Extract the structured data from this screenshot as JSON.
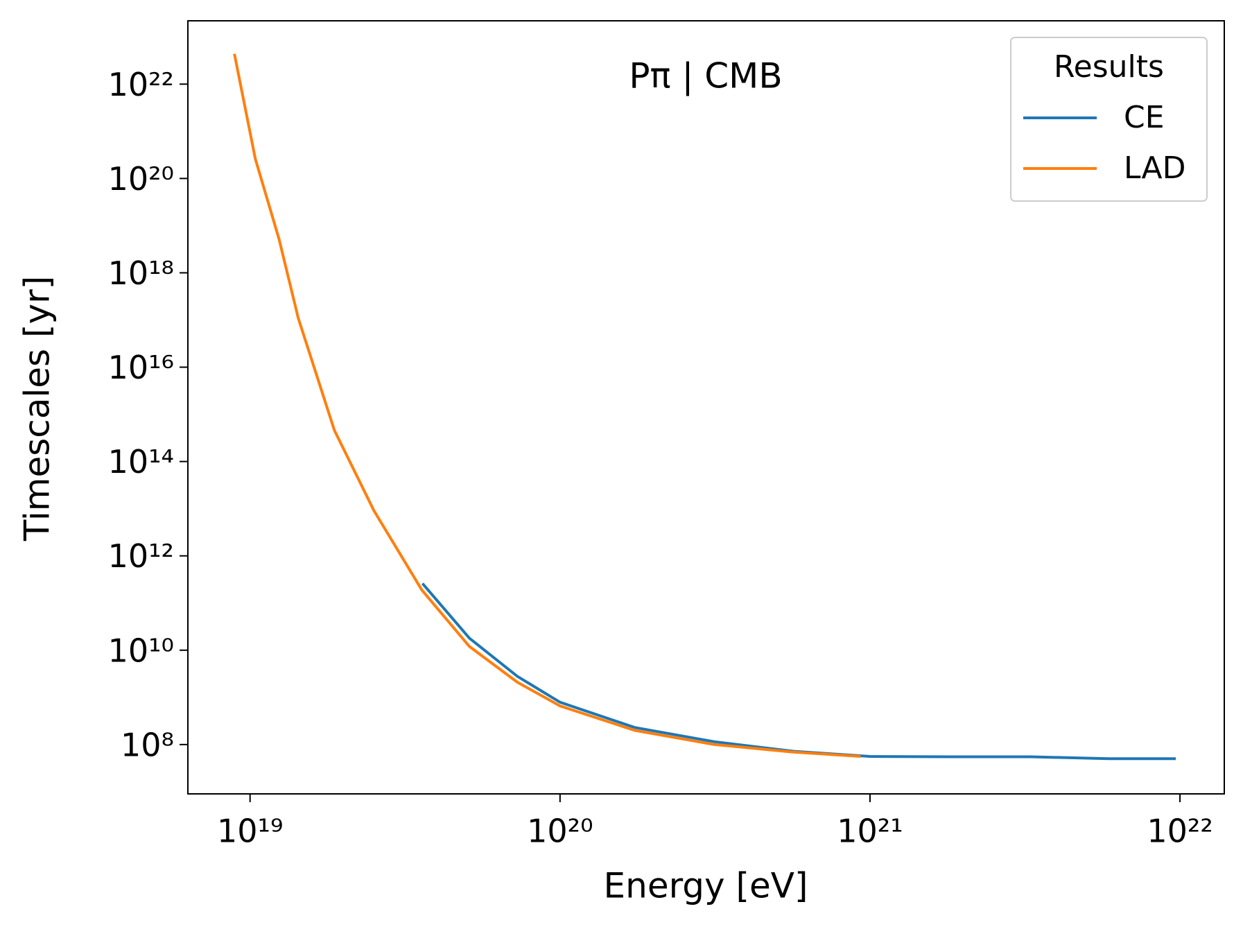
{
  "chart_data": {
    "type": "line",
    "title": "Pπ | CMB",
    "x_label": "Energy [eV]",
    "y_label": "Timescales [yr]",
    "xscale": "log",
    "yscale": "log",
    "xlim": [
      6.3e+18,
      1.39e+22
    ],
    "ylim": [
      9000000.0,
      2.2e+23
    ],
    "xticks": [
      {
        "value": 1e+19,
        "label": "10¹⁹"
      },
      {
        "value": 1e+20,
        "label": "10²⁰"
      },
      {
        "value": 1e+21,
        "label": "10²¹"
      },
      {
        "value": 1e+22,
        "label": "10²²"
      }
    ],
    "yticks": [
      {
        "value": 100000000.0,
        "label": "10⁸"
      },
      {
        "value": 10000000000.0,
        "label": "10¹⁰"
      },
      {
        "value": 1000000000000.0,
        "label": "10¹²"
      },
      {
        "value": 100000000000000.0,
        "label": "10¹⁴"
      },
      {
        "value": 1e+16,
        "label": "10¹⁶"
      },
      {
        "value": 1e+18,
        "label": "10¹⁸"
      },
      {
        "value": 1e+20,
        "label": "10²⁰"
      },
      {
        "value": 1e+22,
        "label": "10²²"
      }
    ],
    "legend_title": "Results",
    "legend_position": "upper right",
    "series": [
      {
        "name": "CE",
        "color": "#1f77b4",
        "x": [
          3.6e+19,
          5.1e+19,
          7.28e+19,
          1e+20,
          1.74e+20,
          3.14e+20,
          5.68e+20,
          1e+21,
          1.84e+21,
          3.31e+21,
          5.9e+21,
          9.7e+21
        ],
        "values": [
          260000000000.0,
          18000000000.0,
          2800000000.0,
          790000000.0,
          230000000.0,
          115000000.0,
          72000000.0,
          56000000.0,
          55000000.0,
          55000000.0,
          50000000.0,
          50000000.0
        ]
      },
      {
        "name": "LAD",
        "color": "#ff7f0e",
        "x": [
          8.9e+18,
          1.04e+19,
          1.24e+19,
          1.43e+19,
          1.87e+19,
          2.51e+19,
          3.58e+19,
          5.1e+19,
          7.28e+19,
          1e+20,
          1.74e+20,
          3.14e+20,
          5.68e+20,
          9.33e+20
        ],
        "values": [
          4.4e+22,
          2.6e+20,
          5.2e+18,
          1.1e+17,
          460000000000000.0,
          9100000000000.0,
          190000000000.0,
          12000000000.0,
          2100000000.0,
          660000000.0,
          200000000.0,
          100000000.0,
          69000000.0,
          56000000.0
        ]
      }
    ]
  }
}
